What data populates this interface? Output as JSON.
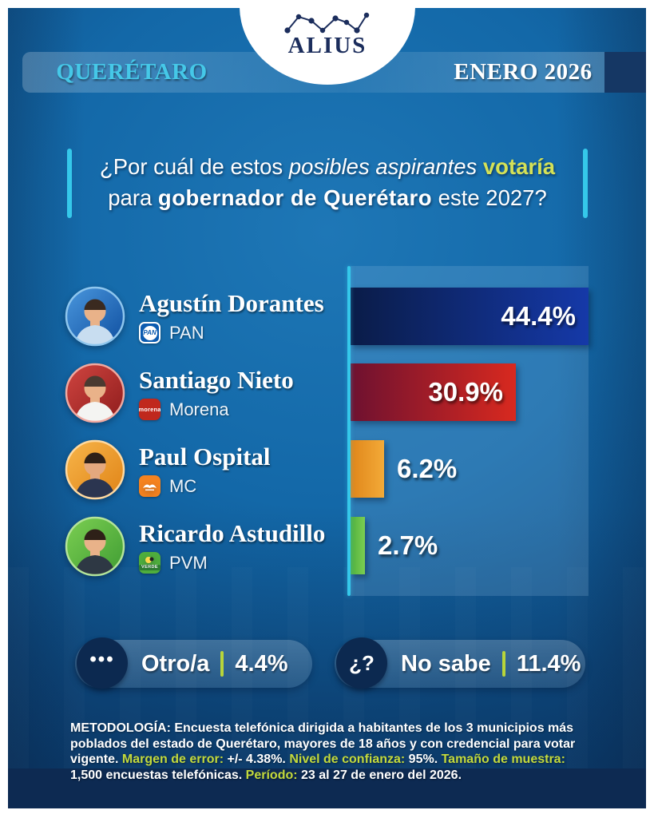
{
  "header": {
    "brand": "ALIUS",
    "location": "QUERÉTARO",
    "date": "ENERO 2026"
  },
  "question": {
    "segments": [
      {
        "t": "¿Por cuál de estos "
      },
      {
        "t": "posibles aspirantes",
        "c": "italic"
      },
      {
        "t": " ",
        "c": ""
      },
      {
        "t": "votaría",
        "c": "accent-bold"
      },
      {
        "t": "",
        "c": "br"
      },
      {
        "t": "para "
      },
      {
        "t": "gobernador de Querétaro",
        "c": "bold"
      },
      {
        "t": " este 2027?"
      }
    ]
  },
  "chart_data": {
    "type": "bar",
    "orientation": "horizontal",
    "title": "¿Por cuál de estos posibles aspirantes votaría para gobernador de Querétaro este 2027?",
    "unit": "%",
    "max_scale": 44.4,
    "categories": [
      "Agustín Dorantes",
      "Santiago Nieto",
      "Paul Ospital",
      "Ricardo Astudillo"
    ],
    "parties": [
      "PAN",
      "Morena",
      "MC",
      "PVM"
    ],
    "values": [
      44.4,
      30.9,
      6.2,
      2.7
    ],
    "bar_colors": [
      [
        "#0a1c48",
        "#1539a8"
      ],
      [
        "#6e1130",
        "#d8291f"
      ],
      [
        "#e0861a",
        "#f3aa38"
      ],
      [
        "#4fae3d",
        "#7ccf52"
      ]
    ],
    "extra": [
      {
        "label": "Otro/a",
        "value": 4.4,
        "display": "4.4%"
      },
      {
        "label": "No sabe",
        "value": 11.4,
        "display": "11.4%"
      }
    ],
    "legend": false,
    "grid": false
  },
  "candidates": [
    {
      "logo": "pan",
      "avatar": {
        "bg1": "#4a97dd",
        "bg2": "#0f4fa0",
        "shirt": "#c8ddf0",
        "hair": "#3a2a20",
        "skin": "#e9b289",
        "ring": "#8ec6ee"
      }
    },
    {
      "logo": "morena",
      "avatar": {
        "bg1": "#d04540",
        "bg2": "#8e1c1c",
        "shirt": "#f4f4f2",
        "hair": "#4a3a30",
        "skin": "#e9b289",
        "ring": "#f0a9a0"
      }
    },
    {
      "logo": "mc",
      "avatar": {
        "bg1": "#f7b54a",
        "bg2": "#e08316",
        "shirt": "#2b3550",
        "hair": "#2e2018",
        "skin": "#e4a87e",
        "ring": "#ffd9a0"
      }
    },
    {
      "logo": "verde",
      "avatar": {
        "bg1": "#7ccf52",
        "bg2": "#3f9c33",
        "shirt": "#2e3844",
        "hair": "#2e2018",
        "skin": "#e9b289",
        "ring": "#b4e49a"
      }
    }
  ],
  "pills": {
    "others_icon": "•••",
    "no_sabe_icon": "¿?"
  },
  "methodology": {
    "segments": [
      {
        "t": "METODOLOGÍA:",
        "c": "strong"
      },
      {
        "t": " Encuesta telefónica dirigida a habitantes de los 3 municipios más poblados del estado de Querétaro, mayores de 18 años y con credencial para votar vigente. "
      },
      {
        "t": "Margen de error:",
        "c": "accent"
      },
      {
        "t": " +/- 4.38%. "
      },
      {
        "t": "Nivel de confianza:",
        "c": "accent"
      },
      {
        "t": " 95%. "
      },
      {
        "t": "Tamaño de muestra:",
        "c": "accent"
      },
      {
        "t": " 1,500 encuestas telefónicas. "
      },
      {
        "t": "Período:",
        "c": "accent"
      },
      {
        "t": " 23 al 27 de enero del 2026."
      }
    ]
  },
  "colors": {
    "accent_cyan": "#35c8ea",
    "accent_yellow_green": "#d4e157",
    "methodology_accent": "#c3d93c",
    "footer_navy": "#0d2a52",
    "brand_navy": "#1b2d5c"
  }
}
